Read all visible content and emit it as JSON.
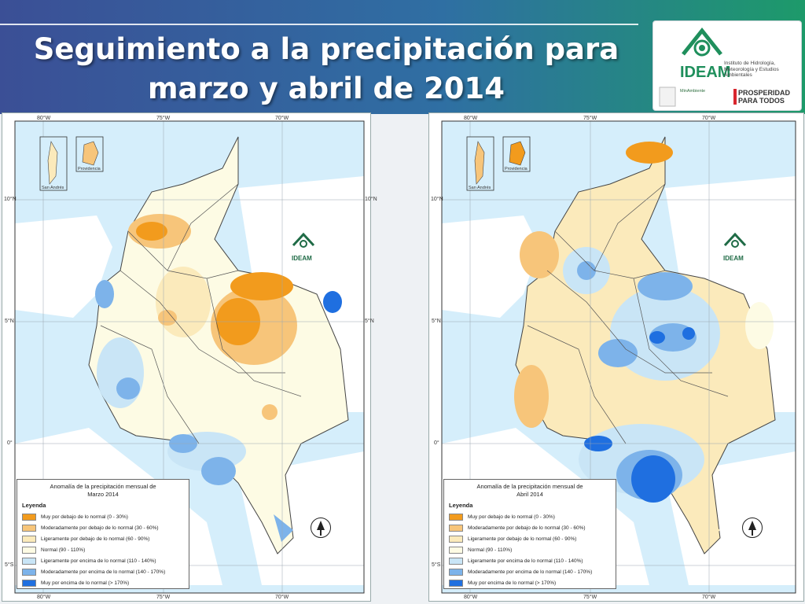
{
  "slide": {
    "title_line1": "Seguimiento a la precipitación para",
    "title_line2": "marzo y abril de 2014"
  },
  "logo": {
    "name": "IDEAM",
    "institute": "Instituto de Hidrología, Meteorología y Estudios Ambientales",
    "ministry": "MinAmbiente",
    "slogan": "PROSPERIDAD PARA TODOS",
    "icon": "ideam-logo-icon"
  },
  "colors": {
    "muy_debajo": "#f29b1d",
    "moderado_debajo": "#f7c57a",
    "ligero_debajo": "#fbeabb",
    "normal": "#fdfbe4",
    "ligero_encima": "#c9e5f6",
    "moderado_encima": "#7db3ea",
    "muy_encima": "#1f6fe0",
    "sea": "#d5eefb"
  },
  "maps": [
    {
      "month_title_line1": "Anomalía de la precipitación mensual de",
      "month_title_line2": "Marzo 2014",
      "legend_heading": "Leyenda",
      "inset1": "San Andrés",
      "inset2": "Providencia",
      "watermark": "IDEAM"
    },
    {
      "month_title_line1": "Anomalía de la precipitación mensual de",
      "month_title_line2": "Abril 2014",
      "legend_heading": "Leyenda",
      "inset1": "San Andrés",
      "inset2": "Providencia",
      "watermark": "IDEAM"
    }
  ],
  "legend": [
    {
      "label": "Muy por debajo de lo normal (0 - 30%)",
      "color": "#f29b1d"
    },
    {
      "label": "Moderadamente por debajo de lo normal (30 - 60%)",
      "color": "#f7c57a"
    },
    {
      "label": "Ligeramente por debajo de lo normal (60 - 90%)",
      "color": "#fbeabb"
    },
    {
      "label": "Normal (90 - 110%)",
      "color": "#fdfbe4"
    },
    {
      "label": "Ligeramente por encima de lo normal (110 - 140%)",
      "color": "#c9e5f6"
    },
    {
      "label": "Moderadamente por encima de lo normal (140 - 170%)",
      "color": "#7db3ea"
    },
    {
      "label": "Muy por encima de lo normal (> 170%)",
      "color": "#1f6fe0"
    }
  ],
  "coords": {
    "lon": [
      "80°W",
      "75°W",
      "70°W"
    ],
    "lat": [
      "10°N",
      "5°N",
      "0°",
      "5°S"
    ]
  }
}
